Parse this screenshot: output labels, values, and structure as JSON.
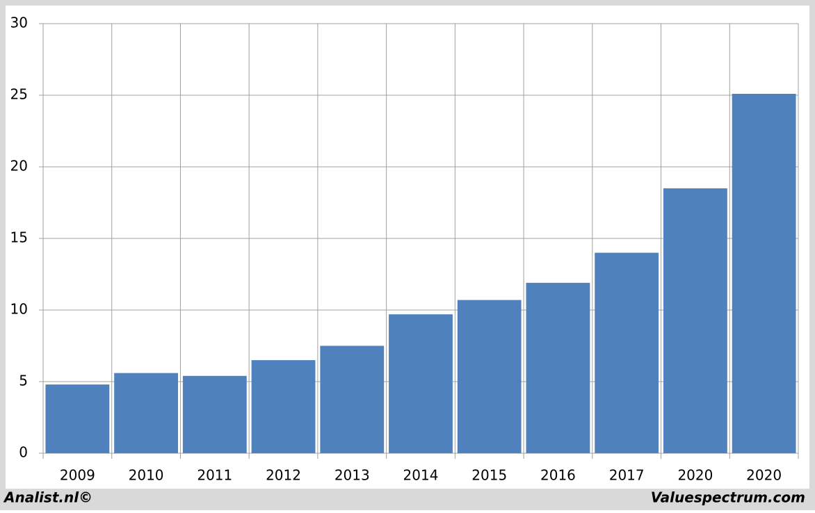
{
  "chart_data": {
    "type": "bar",
    "categories": [
      "2009",
      "2010",
      "2011",
      "2012",
      "2013",
      "2014",
      "2015",
      "2016",
      "2017",
      "2020",
      "2020"
    ],
    "values": [
      4.8,
      5.6,
      5.4,
      6.5,
      7.5,
      9.7,
      10.7,
      11.9,
      14.0,
      18.5,
      25.1
    ],
    "color": "#4f81bd",
    "ylim": [
      0,
      30
    ],
    "yticks": [
      0,
      5,
      10,
      15,
      20,
      25,
      30
    ],
    "grid": true,
    "source_left": "Analist.nl©",
    "source_right": "Valuespectrum.com"
  }
}
